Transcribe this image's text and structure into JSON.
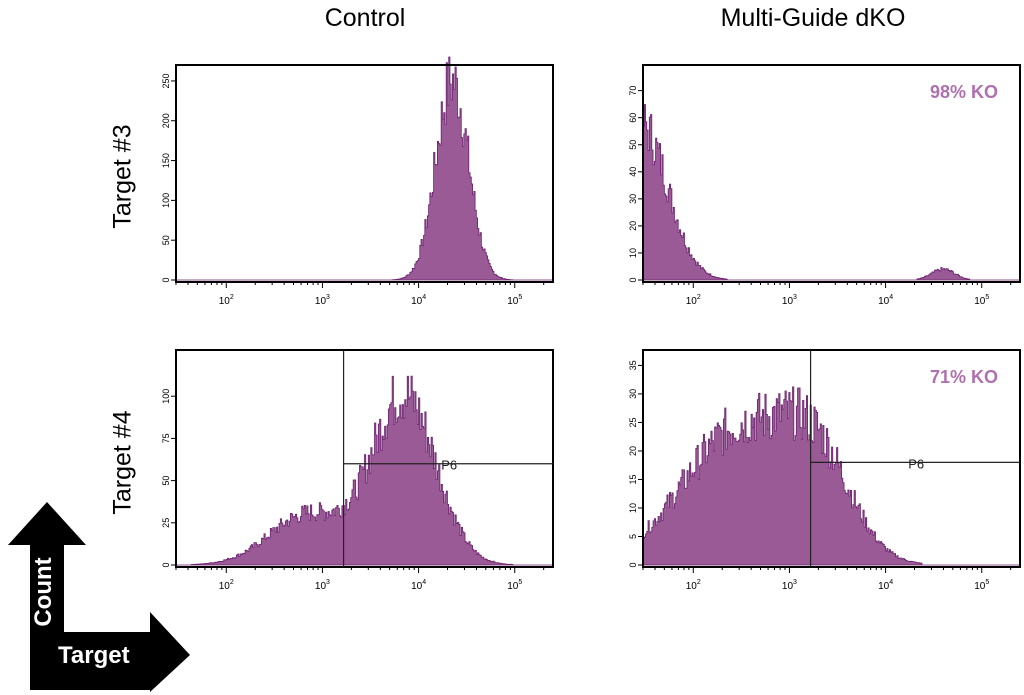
{
  "columns": [
    "Control",
    "Multi-Guide dKO"
  ],
  "rows": [
    "Target #3",
    "Target #4"
  ],
  "axis_arrows": {
    "y": "Count",
    "x": "Target"
  },
  "colors": {
    "fill": "#9a5a96",
    "stroke": "#6b1f6e",
    "annotation": "#b070b0",
    "gate": "#222222"
  },
  "chart_data": [
    {
      "type": "area",
      "title": "Control / Target #3",
      "xscale": "log",
      "xlim": [
        30,
        250000
      ],
      "ylim": [
        0,
        265
      ],
      "xticks": [
        "10^2",
        "10^3",
        "10^4",
        "10^5"
      ],
      "yticks": [
        0,
        50,
        100,
        150,
        200,
        250
      ],
      "peaks": [
        {
          "center_log": 4.35,
          "width_log": 0.17,
          "height": 250
        }
      ],
      "annotation": "",
      "gate": null
    },
    {
      "type": "area",
      "title": "Multi-Guide dKO / Target #3",
      "xscale": "log",
      "xlim": [
        30,
        250000
      ],
      "ylim": [
        0,
        78
      ],
      "xticks": [
        "10^2",
        "10^3",
        "10^4",
        "10^5"
      ],
      "yticks": [
        0,
        10,
        20,
        30,
        40,
        50,
        60,
        70
      ],
      "peaks": [
        {
          "center_log": 1.45,
          "width_log": 0.28,
          "height": 58
        },
        {
          "center_log": 4.6,
          "width_log": 0.12,
          "height": 4
        }
      ],
      "annotation": "98% KO",
      "gate": null
    },
    {
      "type": "area",
      "title": "Control / Target #4",
      "xscale": "log",
      "xlim": [
        30,
        250000
      ],
      "ylim": [
        0,
        125
      ],
      "xticks": [
        "10^2",
        "10^3",
        "10^4",
        "10^5"
      ],
      "yticks": [
        0,
        25,
        50,
        75,
        100
      ],
      "peaks": [
        {
          "center_log": 3.85,
          "width_log": 0.33,
          "height": 100
        },
        {
          "center_log": 2.85,
          "width_log": 0.4,
          "height": 30
        }
      ],
      "annotation": "",
      "gate": {
        "label": "P6",
        "x_log": 3.22,
        "y": 60
      }
    },
    {
      "type": "area",
      "title": "Multi-Guide dKO / Target #4",
      "xscale": "log",
      "xlim": [
        30,
        250000
      ],
      "ylim": [
        0,
        37
      ],
      "xticks": [
        "10^2",
        "10^3",
        "10^4",
        "10^5"
      ],
      "yticks": [
        0,
        5,
        10,
        15,
        20,
        25,
        30,
        35
      ],
      "peaks": [
        {
          "center_log": 2.5,
          "width_log": 0.6,
          "height": 24
        },
        {
          "center_log": 3.3,
          "width_log": 0.35,
          "height": 14
        }
      ],
      "annotation": "71% KO",
      "gate": {
        "label": "P6",
        "x_log": 3.22,
        "y": 18
      }
    }
  ]
}
